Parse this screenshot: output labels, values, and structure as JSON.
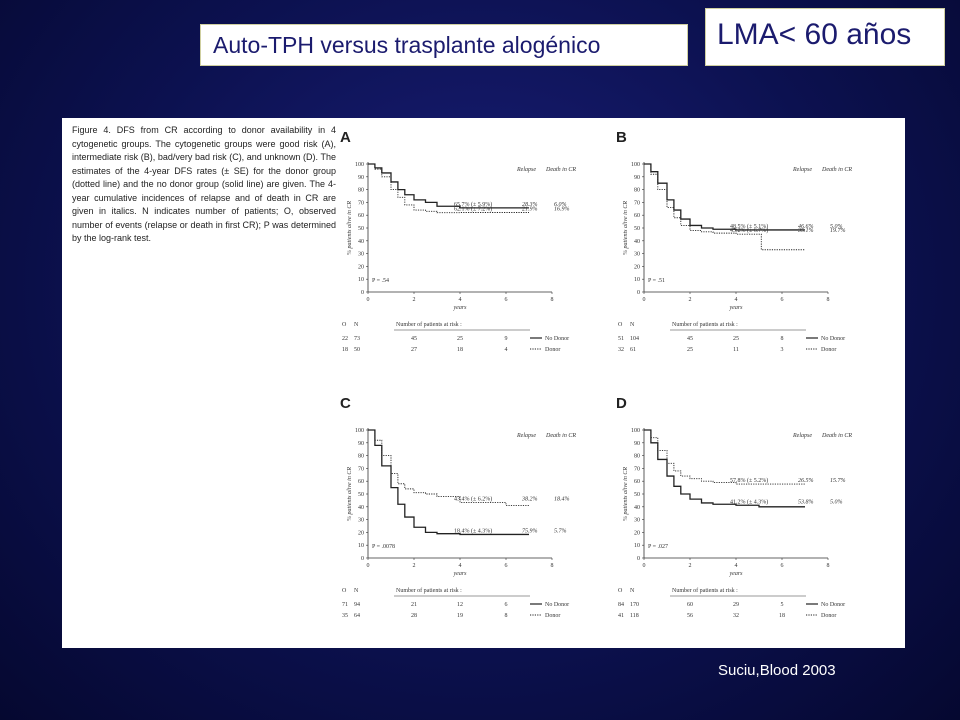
{
  "title": "Auto-TPH versus trasplante alogénico",
  "subtitle_box": "LMA< 60 años",
  "citation": "Suciu,Blood 2003",
  "figure": {
    "caption": "Figure 4. DFS from CR according to donor availability in 4 cytogenetic groups. The cytogenetic groups were good risk (A), intermediate risk (B), bad/very bad risk (C), and unknown (D). The estimates of the 4-year DFS rates (± SE) for the donor group (dotted line) and the no donor group (solid line) are given. The 4-year cumulative incidences of relapse and of death in CR are given in italics. N indicates number of patients; O, observed number of events (relapse or death in first CR); P was determined by the log-rank test.",
    "ylabel": "% patients alive in CR",
    "xlabel": "years",
    "y_ticks": [
      "0",
      "10",
      "20",
      "30",
      "40",
      "50",
      "60",
      "70",
      "80",
      "90",
      "100"
    ],
    "x_ticks": [
      "0",
      "2",
      "4",
      "6",
      "8"
    ],
    "header_relapse": "Relapse",
    "header_death": "Death in CR",
    "risk_header_o": "O",
    "risk_header_n": "N",
    "risk_header_text": "Number of patients at risk :",
    "legend_no_donor": "No Donor",
    "legend_donor": "Donor"
  },
  "chart_data": [
    {
      "type": "line",
      "panel": "A",
      "p_value": "P = .54",
      "series": [
        {
          "name": "No Donor",
          "style": "solid",
          "x": [
            0,
            0.3,
            0.6,
            1,
            1.3,
            1.6,
            2,
            2.5,
            3,
            4,
            5,
            6,
            7
          ],
          "y": [
            100,
            97,
            93,
            86,
            80,
            76,
            72,
            70,
            67,
            65.7,
            65.7,
            65.7,
            65.7
          ]
        },
        {
          "name": "Donor",
          "style": "dotted",
          "x": [
            0,
            0.3,
            0.6,
            1,
            1.3,
            1.6,
            2,
            2.5,
            3,
            4,
            5,
            6,
            7
          ],
          "y": [
            100,
            96,
            90,
            80,
            74,
            68,
            64,
            63,
            62,
            62.1,
            62.1,
            62.1,
            62.1
          ]
        }
      ],
      "annotations": [
        {
          "label": "65.7% (± 5.9%)",
          "relapse": "28.3%",
          "death": "6.0%",
          "y": 65.7
        },
        {
          "label": "62.1% (± 7.2%)",
          "relapse": "21.9%",
          "death": "16.9%",
          "y": 62.1
        }
      ],
      "risk_table": [
        {
          "o": "22",
          "n": "73",
          "at_risk": [
            "45",
            "25",
            "9"
          ],
          "group": "No Donor"
        },
        {
          "o": "18",
          "n": "50",
          "at_risk": [
            "27",
            "18",
            "4"
          ],
          "group": "Donor"
        }
      ]
    },
    {
      "type": "line",
      "panel": "B",
      "p_value": "P = .51",
      "series": [
        {
          "name": "No Donor",
          "style": "solid",
          "x": [
            0,
            0.3,
            0.6,
            1,
            1.3,
            1.6,
            2,
            2.5,
            3,
            4,
            5,
            6,
            7
          ],
          "y": [
            100,
            94,
            85,
            72,
            64,
            57,
            52,
            50,
            49,
            48.5,
            48.5,
            48.5,
            48.5
          ]
        },
        {
          "name": "Donor",
          "style": "dotted",
          "x": [
            0,
            0.3,
            0.6,
            1,
            1.3,
            1.6,
            2,
            2.5,
            3,
            4,
            5,
            5.1,
            7
          ],
          "y": [
            100,
            92,
            80,
            66,
            58,
            52,
            48,
            47,
            46,
            45.2,
            45.2,
            33,
            33
          ]
        }
      ],
      "annotations": [
        {
          "label": "48.5% (± 5.1%)",
          "relapse": "46.6%",
          "death": "5.0%",
          "y": 48.5
        },
        {
          "label": "45.2% (± 6.7%)",
          "relapse": "35.1%",
          "death": "19.7%",
          "y": 45.2
        }
      ],
      "risk_table": [
        {
          "o": "51",
          "n": "104",
          "at_risk": [
            "45",
            "25",
            "8"
          ],
          "group": "No Donor"
        },
        {
          "o": "32",
          "n": "61",
          "at_risk": [
            "25",
            "11",
            "3"
          ],
          "group": "Donor"
        }
      ]
    },
    {
      "type": "line",
      "panel": "C",
      "p_value": "P = .0078",
      "series": [
        {
          "name": "No Donor",
          "style": "solid",
          "x": [
            0,
            0.3,
            0.6,
            1,
            1.3,
            1.6,
            2,
            2.5,
            3,
            4,
            5,
            6,
            7
          ],
          "y": [
            100,
            88,
            72,
            55,
            42,
            32,
            24,
            20,
            19,
            18.4,
            18.4,
            18.4,
            18.4
          ]
        },
        {
          "name": "Donor",
          "style": "dotted",
          "x": [
            0,
            0.3,
            0.6,
            1,
            1.3,
            1.6,
            2,
            2.5,
            3,
            4,
            5,
            6,
            7
          ],
          "y": [
            100,
            92,
            80,
            66,
            58,
            54,
            51,
            50,
            48,
            43.4,
            43.4,
            41,
            41
          ]
        }
      ],
      "annotations": [
        {
          "label": "43.4% (± 6.2%)",
          "relapse": "38.2%",
          "death": "18.4%",
          "y": 43.4
        },
        {
          "label": "18.4% (± 4.3%)",
          "relapse": "75.9%",
          "death": "5.7%",
          "y": 18.4
        }
      ],
      "risk_table": [
        {
          "o": "71",
          "n": "94",
          "at_risk": [
            "21",
            "12",
            "6"
          ],
          "group": "No Donor"
        },
        {
          "o": "35",
          "n": "64",
          "at_risk": [
            "28",
            "19",
            "8"
          ],
          "group": "Donor"
        }
      ]
    },
    {
      "type": "line",
      "panel": "D",
      "p_value": "P = .027",
      "series": [
        {
          "name": "No Donor",
          "style": "solid",
          "x": [
            0,
            0.3,
            0.6,
            1,
            1.3,
            1.6,
            2,
            2.5,
            3,
            4,
            5,
            6,
            7
          ],
          "y": [
            100,
            90,
            77,
            64,
            56,
            50,
            46,
            43,
            42,
            41.2,
            40,
            40,
            40
          ]
        },
        {
          "name": "Donor",
          "style": "dotted",
          "x": [
            0,
            0.3,
            0.6,
            1,
            1.3,
            1.6,
            2,
            2.5,
            3,
            4,
            5,
            6,
            7
          ],
          "y": [
            100,
            94,
            84,
            74,
            68,
            64,
            62,
            60,
            59,
            57.8,
            57.8,
            57.8,
            57.8
          ]
        }
      ],
      "annotations": [
        {
          "label": "57.8% (± 5.2%)",
          "relapse": "26.5%",
          "death": "15.7%",
          "y": 57.8
        },
        {
          "label": "41.2% (± 4.3%)",
          "relapse": "53.8%",
          "death": "5.0%",
          "y": 41.2
        }
      ],
      "risk_table": [
        {
          "o": "84",
          "n": "170",
          "at_risk": [
            "60",
            "29",
            "5"
          ],
          "group": "No Donor"
        },
        {
          "o": "41",
          "n": "118",
          "at_risk": [
            "56",
            "32",
            "18"
          ],
          "group": "Donor"
        }
      ]
    }
  ]
}
